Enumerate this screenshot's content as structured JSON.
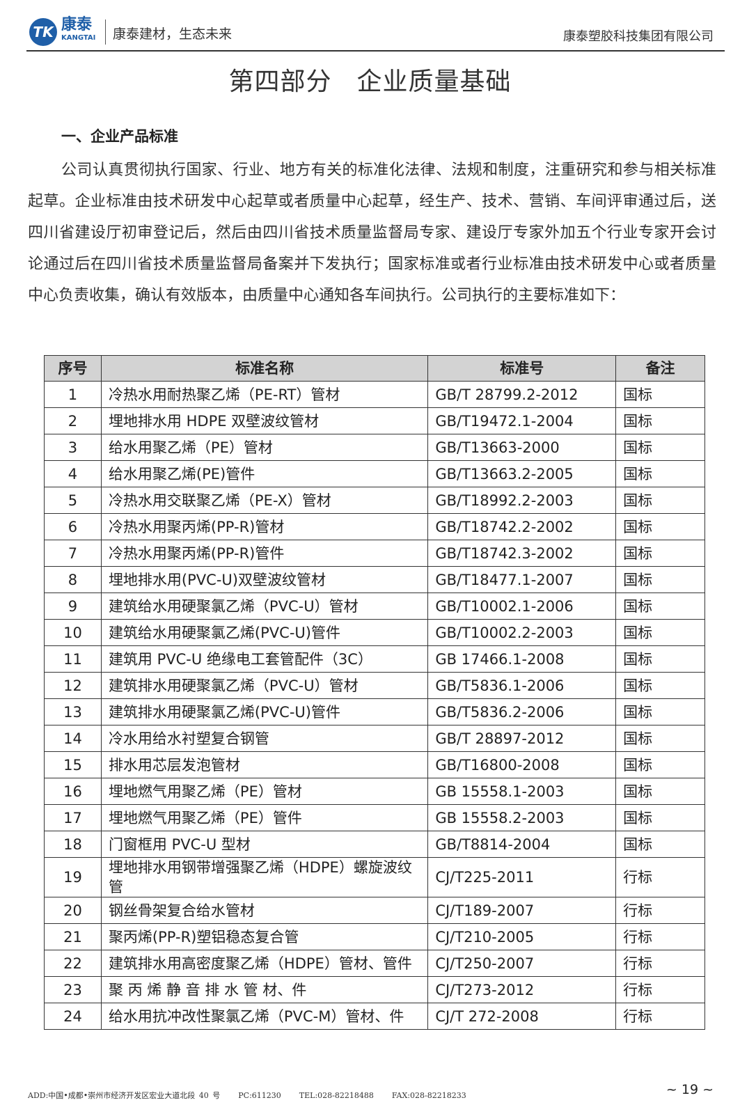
{
  "header": {
    "logo_text": "TK",
    "brand_cn": "康泰",
    "brand_en": "KANGTAI",
    "slogan": "康泰建材，生态未来",
    "company": "康泰塑胶科技集团有限公司"
  },
  "title": {
    "part": "第四部分",
    "name": "企业质量基础"
  },
  "section_heading": "一、企业产品标准",
  "paragraph": "公司认真贯彻执行国家、行业、地方有关的标准化法律、法规和制度，注重研究和参与相关标准起草。企业标准由技术研发中心起草或者质量中心起草，经生产、技术、营销、车间评审通过后，送四川省建设厅初审登记后，然后由四川省技术质量监督局专家、建设厅专家外加五个行业专家开会讨论通过后在四川省技术质量监督局备案并下发执行；国家标准或者行业标准由技术研发中心或者质量中心负责收集，确认有效版本，由质量中心通知各车间执行。公司执行的主要标准如下：",
  "table": {
    "headers": [
      "序号",
      "标准名称",
      "标准号",
      "备注"
    ],
    "rows": [
      [
        "1",
        "冷热水用耐热聚乙烯（PE-RT）管材",
        "GB/T 28799.2-2012",
        "国标"
      ],
      [
        "2",
        "埋地排水用 HDPE 双壁波纹管材",
        "GB/T19472.1-2004",
        "国标"
      ],
      [
        "3",
        "给水用聚乙烯（PE）管材",
        "GB/T13663-2000",
        "国标"
      ],
      [
        "4",
        "给水用聚乙烯(PE)管件",
        "GB/T13663.2-2005",
        "国标"
      ],
      [
        "5",
        "冷热水用交联聚乙烯（PE-X）管材",
        "GB/T18992.2-2003",
        "国标"
      ],
      [
        "6",
        "冷热水用聚丙烯(PP-R)管材",
        "GB/T18742.2-2002",
        "国标"
      ],
      [
        "7",
        "冷热水用聚丙烯(PP-R)管件",
        "GB/T18742.3-2002",
        "国标"
      ],
      [
        "8",
        "埋地排水用(PVC-U)双壁波纹管材",
        "GB/T18477.1-2007",
        "国标"
      ],
      [
        "9",
        "建筑给水用硬聚氯乙烯（PVC-U）管材",
        "GB/T10002.1-2006",
        "国标"
      ],
      [
        "10",
        "建筑给水用硬聚氯乙烯(PVC-U)管件",
        "GB/T10002.2-2003",
        "国标"
      ],
      [
        "11",
        "建筑用 PVC-U 绝缘电工套管配件（3C）",
        "GB 17466.1-2008",
        "国标"
      ],
      [
        "12",
        "建筑排水用硬聚氯乙烯（PVC-U）管材",
        "GB/T5836.1-2006",
        "国标"
      ],
      [
        "13",
        "建筑排水用硬聚氯乙烯(PVC-U)管件",
        "GB/T5836.2-2006",
        "国标"
      ],
      [
        "14",
        "冷水用给水衬塑复合钢管",
        "GB/T 28897-2012",
        "国标"
      ],
      [
        "15",
        "排水用芯层发泡管材",
        "GB/T16800-2008",
        "国标"
      ],
      [
        "16",
        "埋地燃气用聚乙烯（PE）管材",
        "GB 15558.1-2003",
        "国标"
      ],
      [
        "17",
        "埋地燃气用聚乙烯（PE）管件",
        "GB 15558.2-2003",
        "国标"
      ],
      [
        "18",
        "门窗框用 PVC-U 型材",
        "GB/T8814-2004",
        "国标"
      ],
      [
        "19",
        "埋地排水用钢带增强聚乙烯（HDPE）螺旋波纹管",
        "CJ/T225-2011",
        "行标"
      ],
      [
        "20",
        "钢丝骨架复合给水管材",
        "CJ/T189-2007",
        "行标"
      ],
      [
        "21",
        "聚丙烯(PP-R)塑铝稳态复合管",
        "CJ/T210-2005",
        "行标"
      ],
      [
        "22",
        "建筑排水用高密度聚乙烯（HDPE）管材、管件",
        "CJ/T250-2007",
        "行标"
      ],
      [
        "23",
        "聚 丙 烯 静 音 排 水 管 材、件",
        "CJ/T273-2012",
        "行标"
      ],
      [
        "24",
        "给水用抗冲改性聚氯乙烯（PVC-M）管材、件",
        "CJ/T 272-2008",
        "行标"
      ]
    ]
  },
  "footer": {
    "address": "ADD:中国•成都•崇州市经济开发区宏业大道北段 40 号",
    "pc": "PC:611230",
    "tel": "TEL:028-82218488",
    "fax": "FAX:028-82218233",
    "page": "~ 19 ~"
  }
}
